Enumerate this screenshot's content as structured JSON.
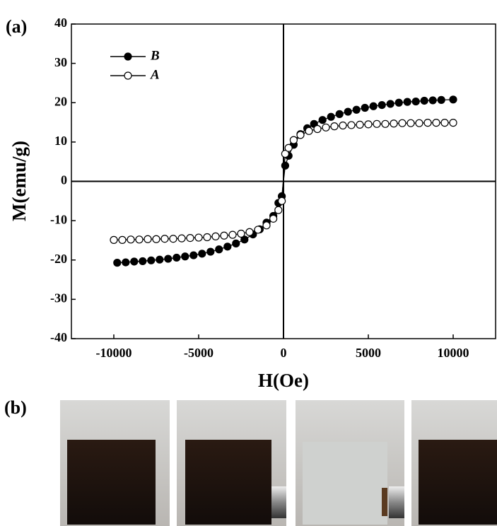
{
  "chart_data": {
    "type": "line",
    "xlabel": "H(Oe)",
    "ylabel": "M(emu/g)",
    "panel_labels": [
      "(a)",
      "(b)"
    ],
    "xlim": [
      -12500,
      12500
    ],
    "xticks": [
      -10000,
      -5000,
      0,
      5000,
      10000
    ],
    "ylim": [
      -40,
      40
    ],
    "yticks": [
      -40,
      -30,
      -20,
      -10,
      0,
      10,
      20,
      30,
      40
    ],
    "zero_lines": true,
    "legend": "upper left",
    "series": [
      {
        "name": "B",
        "color": "#000000",
        "marker": "filled",
        "x": [
          -9800,
          -9300,
          -8800,
          -8300,
          -7800,
          -7300,
          -6800,
          -6300,
          -5800,
          -5300,
          -4800,
          -4300,
          -3800,
          -3300,
          -2800,
          -2300,
          -1800,
          -1400,
          -1000,
          -600,
          -300,
          -100,
          100,
          300,
          600,
          1000,
          1400,
          1800,
          2300,
          2800,
          3300,
          3800,
          4300,
          4800,
          5300,
          5800,
          6300,
          6800,
          7300,
          7800,
          8300,
          8800,
          9300,
          10000
        ],
        "values": [
          -20.7,
          -20.6,
          -20.4,
          -20.3,
          -20.1,
          -19.9,
          -19.7,
          -19.4,
          -19.1,
          -18.8,
          -18.4,
          -17.9,
          -17.3,
          -16.6,
          -15.8,
          -14.8,
          -13.5,
          -12.2,
          -10.5,
          -8.8,
          -5.5,
          -3.8,
          4.0,
          6.5,
          9.3,
          12.0,
          13.5,
          14.6,
          15.6,
          16.4,
          17.1,
          17.7,
          18.2,
          18.7,
          19.1,
          19.4,
          19.7,
          20.0,
          20.2,
          20.3,
          20.5,
          20.6,
          20.7,
          20.8
        ]
      },
      {
        "name": "A",
        "color": "#000000",
        "marker": "open",
        "x": [
          -10000,
          -9500,
          -9000,
          -8500,
          -8000,
          -7500,
          -7000,
          -6500,
          -6000,
          -5500,
          -5000,
          -4500,
          -4000,
          -3500,
          -3000,
          -2500,
          -2000,
          -1500,
          -1000,
          -600,
          -300,
          -100,
          100,
          300,
          600,
          1000,
          1500,
          2000,
          2500,
          3000,
          3500,
          4000,
          4500,
          5000,
          5500,
          6000,
          6500,
          7000,
          7500,
          8000,
          8500,
          9000,
          9500,
          10000
        ],
        "values": [
          -14.9,
          -14.9,
          -14.8,
          -14.8,
          -14.7,
          -14.7,
          -14.6,
          -14.6,
          -14.5,
          -14.4,
          -14.3,
          -14.2,
          -14.0,
          -13.8,
          -13.6,
          -13.3,
          -12.9,
          -12.3,
          -11.2,
          -9.5,
          -7.3,
          -5.0,
          7.0,
          8.5,
          10.5,
          11.8,
          12.8,
          13.3,
          13.7,
          14.0,
          14.2,
          14.3,
          14.4,
          14.5,
          14.6,
          14.6,
          14.7,
          14.8,
          14.8,
          14.8,
          14.9,
          14.9,
          14.9,
          14.9
        ]
      }
    ]
  }
}
